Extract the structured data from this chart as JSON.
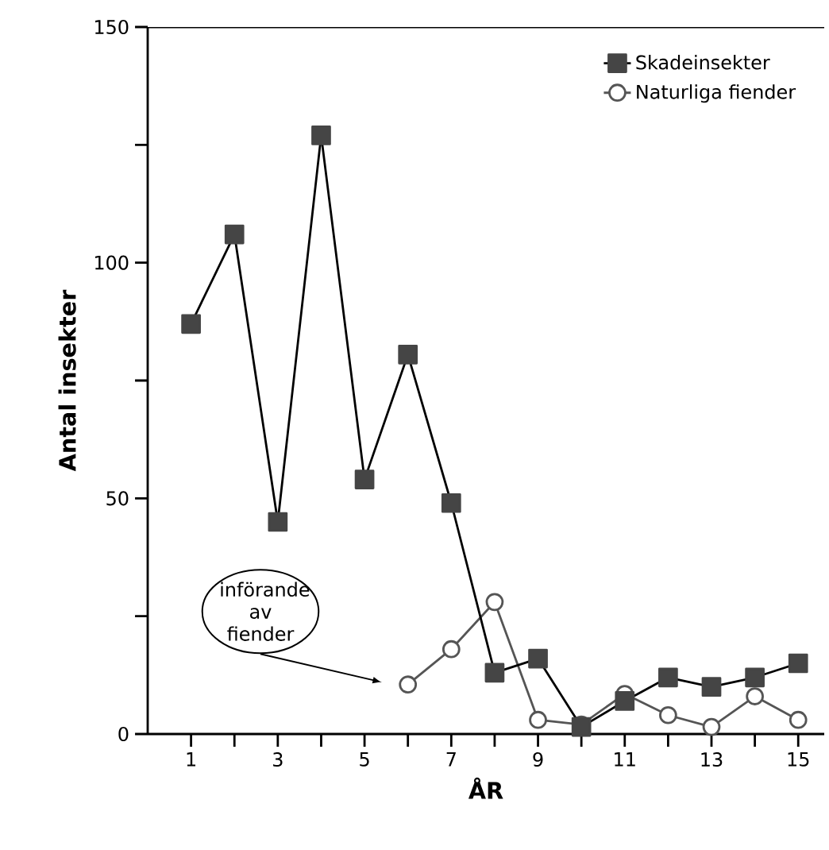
{
  "chart_data": {
    "type": "line",
    "xlabel": "ÅR",
    "ylabel": "Antal insekter",
    "x": [
      1,
      2,
      3,
      4,
      5,
      6,
      7,
      8,
      9,
      10,
      11,
      12,
      13,
      14,
      15
    ],
    "series": [
      {
        "name": "Skadeinsekter",
        "color": "#454545",
        "marker": "square",
        "values": [
          87,
          106,
          45,
          127,
          54,
          80.5,
          49,
          13,
          16,
          1.5,
          7,
          12,
          10,
          12,
          15
        ]
      },
      {
        "name": "Naturliga fiender",
        "color": "#555555",
        "marker": "circle",
        "x": [
          6,
          7,
          8,
          9,
          10,
          11,
          12,
          13,
          14,
          15
        ],
        "values": [
          10.5,
          18,
          28,
          3,
          2,
          8.5,
          4,
          1.5,
          8,
          3
        ]
      }
    ],
    "xlim": [
      0,
      15.6
    ],
    "ylim": [
      0,
      150
    ],
    "xticks": [
      1,
      {
        "value": 2,
        "label": null
      },
      3,
      {
        "value": 4,
        "label": null
      },
      5,
      {
        "value": 6,
        "label": null
      },
      7,
      {
        "value": 8,
        "label": null
      },
      9,
      {
        "value": 10,
        "label": null
      },
      11,
      {
        "value": 12,
        "label": null
      },
      13,
      {
        "value": 14,
        "label": null
      },
      15
    ],
    "yticks": [
      0,
      {
        "value": 25,
        "label": null
      },
      50,
      {
        "value": 75,
        "label": null
      },
      100,
      {
        "value": 125,
        "label": null
      },
      150
    ],
    "grid": false,
    "legend": "top right",
    "line_style": "solid",
    "annotations": [
      "införande av fiender"
    ]
  }
}
